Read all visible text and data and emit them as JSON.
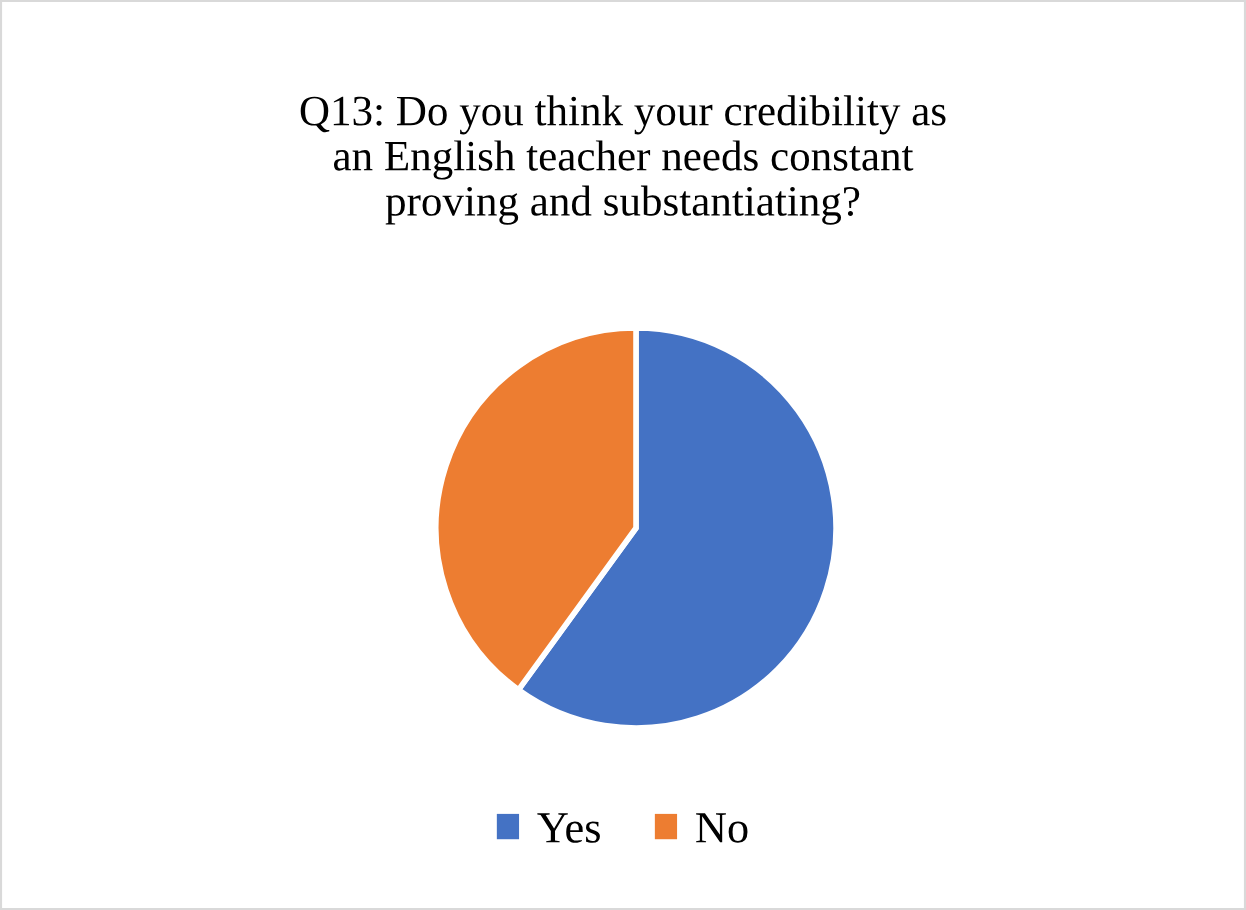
{
  "chart_data": {
    "type": "pie",
    "title": "Q13: Do you think your credibility as\nan English teacher needs constant\nproving and substantiating?",
    "categories": [
      "Yes",
      "No"
    ],
    "values": [
      60,
      40
    ],
    "colors": [
      "#4472c4",
      "#ed7d31"
    ],
    "legend": "bottom"
  }
}
